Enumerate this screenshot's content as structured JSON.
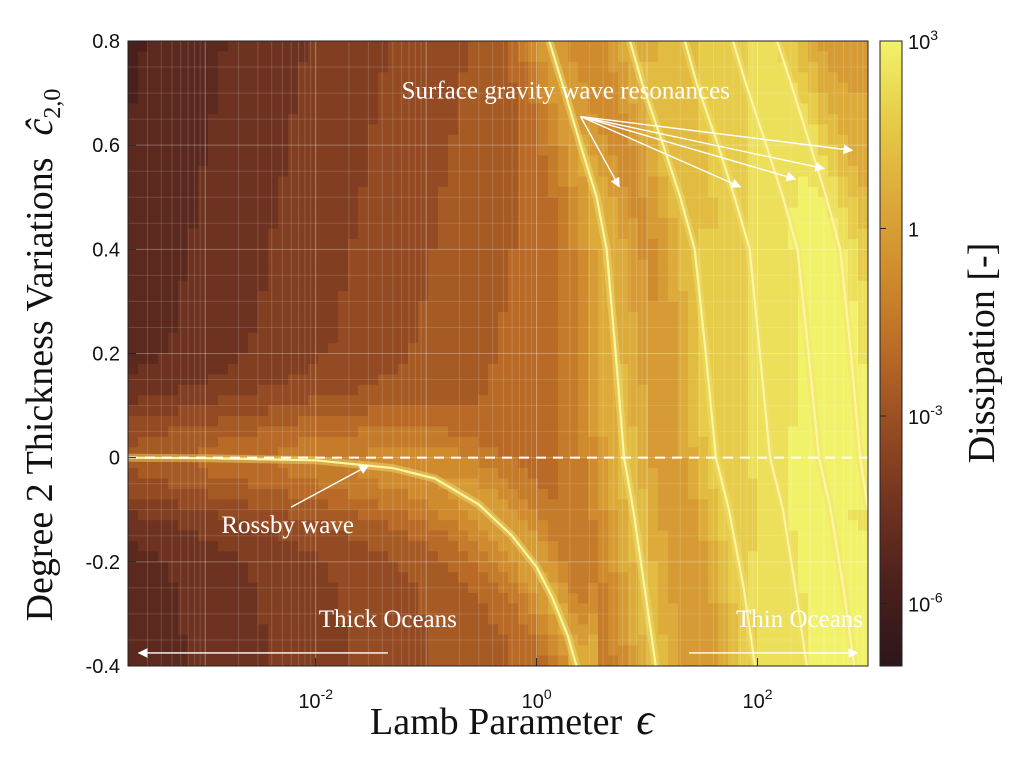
{
  "chart_data": {
    "type": "heatmap",
    "title": "",
    "xlabel": "Lamb Parameter",
    "xlabel_symbol": "ϵ",
    "ylabel": "Degree 2 Thickness Variations",
    "ylabel_symbol": "ĉ",
    "ylabel_symbol_sub": "2,0",
    "x_scale": "log",
    "xlim": [
      0.0002,
      1000
    ],
    "ylim": [
      -0.4,
      0.8
    ],
    "x_ticks": [
      {
        "value": 0.01,
        "base": "10",
        "exp": "-2"
      },
      {
        "value": 1,
        "base": "10",
        "exp": "0"
      },
      {
        "value": 100,
        "base": "10",
        "exp": "2"
      }
    ],
    "y_ticks": [
      {
        "value": -0.4,
        "label": "-0.4"
      },
      {
        "value": -0.2,
        "label": "-0.2"
      },
      {
        "value": 0,
        "label": "0"
      },
      {
        "value": 0.2,
        "label": "0.2"
      },
      {
        "value": 0.4,
        "label": "0.4"
      },
      {
        "value": 0.6,
        "label": "0.6"
      },
      {
        "value": 0.8,
        "label": "0.8"
      }
    ],
    "grid": true,
    "colorbar": {
      "label": "Dissipation [-]",
      "scale": "log",
      "range": [
        1e-07,
        1000.0
      ],
      "ticks": [
        {
          "value": 1000.0,
          "base": "10",
          "exp": "3"
        },
        {
          "value": 1,
          "base": "1",
          "exp": ""
        },
        {
          "value": 0.001,
          "base": "10",
          "exp": "-3"
        },
        {
          "value": 1e-06,
          "base": "10",
          "exp": "-6"
        }
      ],
      "colors": [
        "#2d1619",
        "#4a1f1c",
        "#6e3220",
        "#944a22",
        "#b86a26",
        "#cf8b2e",
        "#dcab3a",
        "#e6cc48",
        "#f2f26a"
      ]
    },
    "zero_line": {
      "y": 0,
      "style": "dashed",
      "color": "#ffffff"
    },
    "ridges": [
      {
        "name": "rossby",
        "x": [
          0.0002,
          0.001,
          0.01,
          0.05,
          0.12,
          0.3,
          0.6,
          1.0,
          1.4,
          1.9,
          2.3
        ],
        "y": [
          0.0,
          -0.001,
          -0.005,
          -0.02,
          -0.04,
          -0.09,
          -0.15,
          -0.21,
          -0.27,
          -0.34,
          -0.4
        ]
      },
      {
        "name": "sgw-1",
        "x": [
          1.3,
          1.7,
          2.5,
          3.5,
          4.3,
          5.2,
          6.2,
          7.5,
          9.5,
          12
        ],
        "y": [
          0.8,
          0.72,
          0.6,
          0.5,
          0.4,
          0.2,
          0.0,
          -0.1,
          -0.25,
          -0.4
        ]
      },
      {
        "name": "sgw-2",
        "x": [
          7,
          9,
          14,
          20,
          27,
          34,
          42,
          55,
          75,
          95
        ],
        "y": [
          0.8,
          0.72,
          0.6,
          0.5,
          0.4,
          0.2,
          0.0,
          -0.1,
          -0.25,
          -0.4
        ]
      },
      {
        "name": "sgw-3",
        "x": [
          22,
          28,
          44,
          62,
          85,
          105,
          130,
          170,
          220,
          280
        ],
        "y": [
          0.8,
          0.72,
          0.6,
          0.5,
          0.4,
          0.2,
          0.0,
          -0.1,
          -0.25,
          -0.4
        ]
      },
      {
        "name": "sgw-4",
        "x": [
          60,
          78,
          120,
          170,
          230,
          290,
          360,
          460,
          600,
          750
        ],
        "y": [
          0.8,
          0.72,
          0.6,
          0.5,
          0.4,
          0.2,
          0.0,
          -0.1,
          -0.25,
          -0.4
        ]
      },
      {
        "name": "sgw-5",
        "x": [
          150,
          200,
          300,
          420,
          560,
          700,
          850,
          1000
        ],
        "y": [
          0.8,
          0.72,
          0.6,
          0.5,
          0.4,
          0.2,
          0.0,
          -0.1
        ]
      }
    ],
    "annotations": [
      {
        "name": "sgw-label",
        "text": "Surface gravity wave resonances",
        "x": 0.06,
        "y": 0.69,
        "arrow_from": [
          2.5,
          0.655
        ],
        "arrow_to": [
          [
            5.6,
            0.52
          ],
          [
            70,
            0.52
          ],
          [
            220,
            0.535
          ],
          [
            400,
            0.555
          ],
          [
            720,
            0.59
          ]
        ]
      },
      {
        "name": "rossby-label",
        "text": "Rossby wave",
        "x": 0.0014,
        "y": -0.145,
        "arrow_from": [
          0.006,
          -0.095
        ],
        "arrow_to": [
          [
            0.03,
            -0.015
          ]
        ]
      },
      {
        "name": "thick-oceans",
        "text": "Thick Oceans",
        "x": 0.045,
        "y": -0.325,
        "arrow_from": [
          0.045,
          -0.375
        ],
        "arrow_to": [
          [
            0.00025,
            -0.375
          ]
        ]
      },
      {
        "name": "thin-oceans",
        "text": "Thin Oceans",
        "x": 240,
        "y": -0.325,
        "arrow_from": [
          24,
          -0.375
        ],
        "arrow_to": [
          [
            800,
            -0.375
          ]
        ]
      }
    ]
  }
}
